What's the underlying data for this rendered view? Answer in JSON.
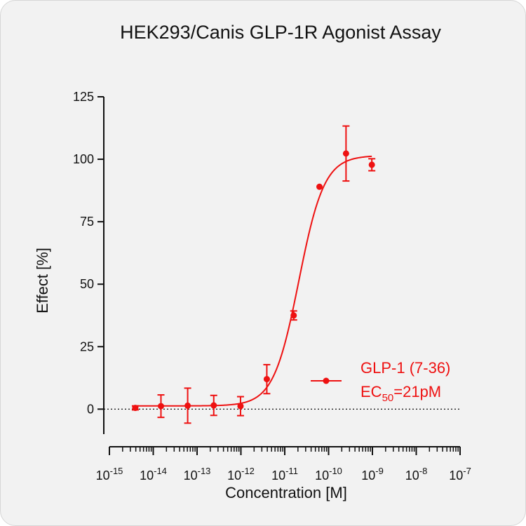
{
  "chart_data": {
    "type": "scatter",
    "title": "HEK293/Canis GLP-1R Agonist Assay",
    "xlabel": "Concentration [M]",
    "ylabel": "Effect  [%]",
    "x_scale": "log",
    "xlim": [
      1e-15,
      1e-07
    ],
    "ylim": [
      -10,
      125
    ],
    "y_ticks": [
      0,
      25,
      50,
      75,
      100,
      125
    ],
    "x_ticks": [
      {
        "base": "10",
        "exp": "-15",
        "value": 1e-15
      },
      {
        "base": "10",
        "exp": "-14",
        "value": 1e-14
      },
      {
        "base": "10",
        "exp": "-13",
        "value": 1e-13
      },
      {
        "base": "10",
        "exp": "-12",
        "value": 1e-12
      },
      {
        "base": "10",
        "exp": "-11",
        "value": 1e-11
      },
      {
        "base": "10",
        "exp": "-10",
        "value": 1e-10
      },
      {
        "base": "10",
        "exp": "-9",
        "value": 1e-09
      },
      {
        "base": "10",
        "exp": "-8",
        "value": 1e-08
      },
      {
        "base": "10",
        "exp": "-7",
        "value": 1e-07
      }
    ],
    "series": [
      {
        "name": "GLP-1 (7-36)",
        "color": "#ee1111",
        "x": [
          3.9e-15,
          1.5e-14,
          6.1e-14,
          2.4e-13,
          9.8e-13,
          3.9e-12,
          1.6e-11,
          6.2e-11,
          2.5e-10,
          9.7e-10
        ],
        "y": [
          0.5,
          1.2,
          1.4,
          1.5,
          1.2,
          12.0,
          37.5,
          89.0,
          102.3,
          97.8
        ],
        "error": [
          0.8,
          4.5,
          7.0,
          4.0,
          3.8,
          5.8,
          1.8,
          0.0,
          11.0,
          2.4
        ],
        "fit": {
          "bottom": 1.3,
          "top": 101.5,
          "ec50": 2.1e-11,
          "hill": 1.5
        }
      }
    ],
    "baseline_y": 0,
    "legend_position": "lower-right",
    "annotation": {
      "prefix": "EC",
      "sub": "50",
      "suffix": "=21pM"
    }
  }
}
